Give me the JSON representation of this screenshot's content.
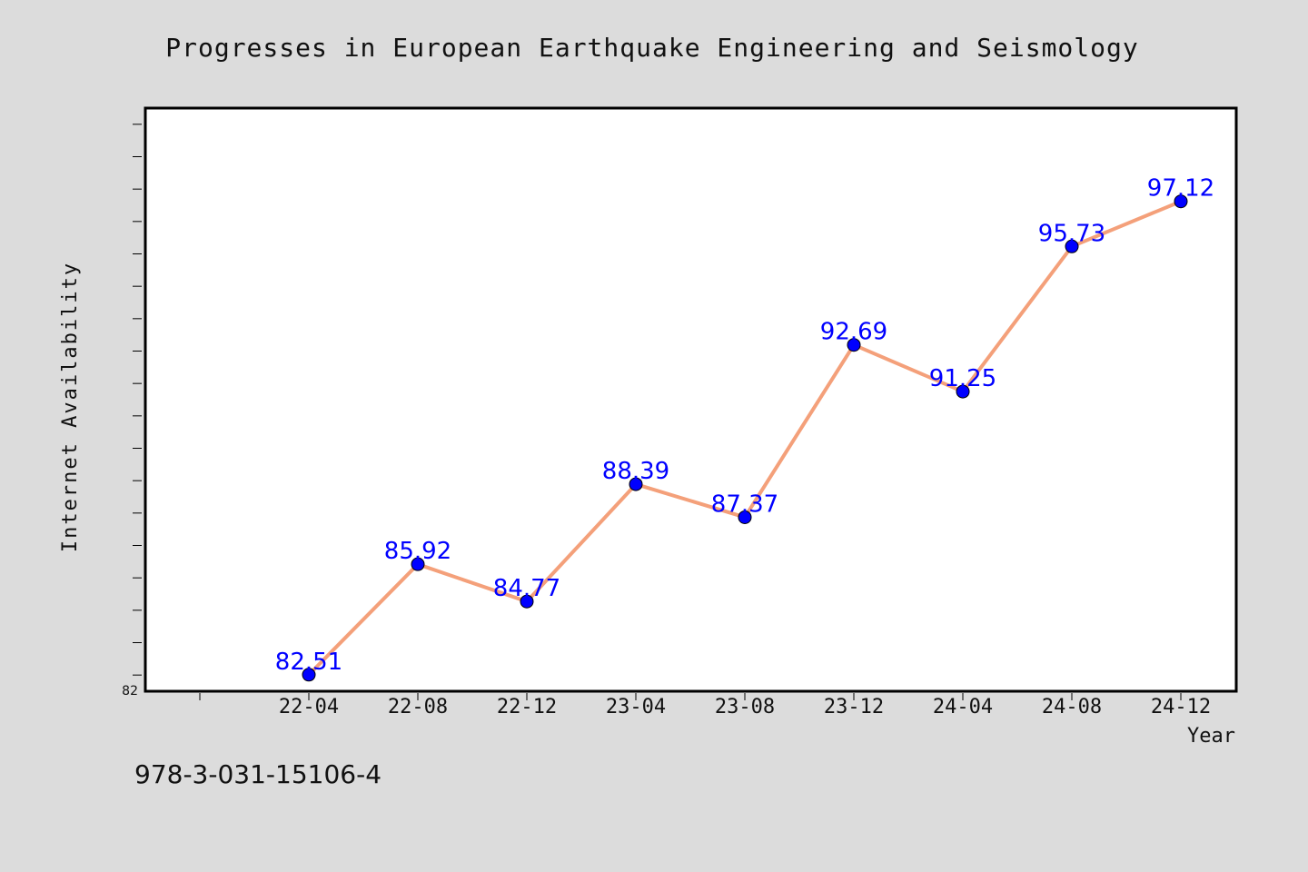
{
  "chart_data": {
    "type": "line",
    "title": "Progresses in European Earthquake Engineering and Seismology",
    "xlabel": "Year",
    "ylabel": "Internet Availability",
    "categories": [
      "22-04",
      "22-08",
      "22-12",
      "23-04",
      "23-08",
      "23-12",
      "24-04",
      "24-08",
      "24-12"
    ],
    "series": [
      {
        "values": [
          82.51,
          85.92,
          84.77,
          88.39,
          87.37,
          92.69,
          91.25,
          95.73,
          97.12
        ],
        "line_color": "#f4a07a",
        "marker_color": "#0000ff"
      }
    ],
    "ylim": [
      82,
      100
    ],
    "y_tick_labels": [
      "82"
    ],
    "data_labels": [
      "82.51",
      "85.92",
      "84.77",
      "88.39",
      "87.37",
      "92.69",
      "91.25",
      "95.73",
      "97.12"
    ],
    "grid": false,
    "legend": "none"
  },
  "footer": {
    "isbn": "978-3-031-15106-4"
  },
  "colors": {
    "background": "#dcdcdc",
    "plot_background": "#ffffff",
    "axis": "#000000"
  }
}
